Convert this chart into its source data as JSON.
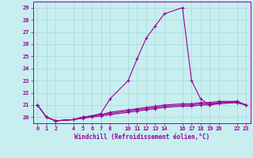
{
  "xlabel": "Windchill (Refroidissement éolien,°C)",
  "bg_color": "#c8eef0",
  "grid_color": "#aadddd",
  "line_color": "#990099",
  "x_ticks": [
    0,
    1,
    2,
    4,
    5,
    6,
    7,
    8,
    10,
    11,
    12,
    13,
    14,
    16,
    17,
    18,
    19,
    20,
    22,
    23
  ],
  "ylim": [
    19.5,
    29.5
  ],
  "xlim": [
    -0.5,
    23.5
  ],
  "yticks": [
    20,
    21,
    22,
    23,
    24,
    25,
    26,
    27,
    28,
    29
  ],
  "series": [
    {
      "x": [
        0,
        1,
        2,
        4,
        5,
        6,
        7,
        8,
        10,
        11,
        12,
        13,
        14,
        16,
        17,
        18,
        19,
        20,
        22,
        23
      ],
      "y": [
        21.0,
        20.0,
        19.7,
        19.8,
        20.0,
        20.1,
        20.3,
        21.5,
        23.0,
        24.8,
        26.5,
        27.5,
        28.5,
        29.0,
        23.0,
        21.5,
        21.0,
        21.2,
        21.3,
        21.0
      ]
    },
    {
      "x": [
        0,
        1,
        2,
        4,
        5,
        6,
        7,
        8,
        10,
        11,
        12,
        13,
        14,
        16,
        17,
        18,
        19,
        20,
        22,
        23
      ],
      "y": [
        21.0,
        20.0,
        19.7,
        19.8,
        20.0,
        20.1,
        20.2,
        20.4,
        20.6,
        20.7,
        20.8,
        20.9,
        21.0,
        21.1,
        21.1,
        21.2,
        21.2,
        21.3,
        21.3,
        21.0
      ]
    },
    {
      "x": [
        0,
        1,
        2,
        4,
        5,
        6,
        7,
        8,
        10,
        11,
        12,
        13,
        14,
        16,
        17,
        18,
        19,
        20,
        22,
        23
      ],
      "y": [
        21.0,
        20.0,
        19.7,
        19.8,
        20.0,
        20.1,
        20.2,
        20.3,
        20.5,
        20.6,
        20.7,
        20.8,
        20.9,
        21.0,
        21.0,
        21.1,
        21.1,
        21.2,
        21.2,
        21.0
      ]
    },
    {
      "x": [
        0,
        1,
        2,
        4,
        5,
        6,
        7,
        8,
        10,
        11,
        12,
        13,
        14,
        16,
        17,
        18,
        19,
        20,
        22,
        23
      ],
      "y": [
        21.0,
        20.0,
        19.7,
        19.8,
        19.9,
        20.0,
        20.1,
        20.2,
        20.4,
        20.5,
        20.6,
        20.7,
        20.8,
        20.9,
        20.9,
        21.0,
        21.0,
        21.1,
        21.2,
        21.0
      ]
    }
  ]
}
